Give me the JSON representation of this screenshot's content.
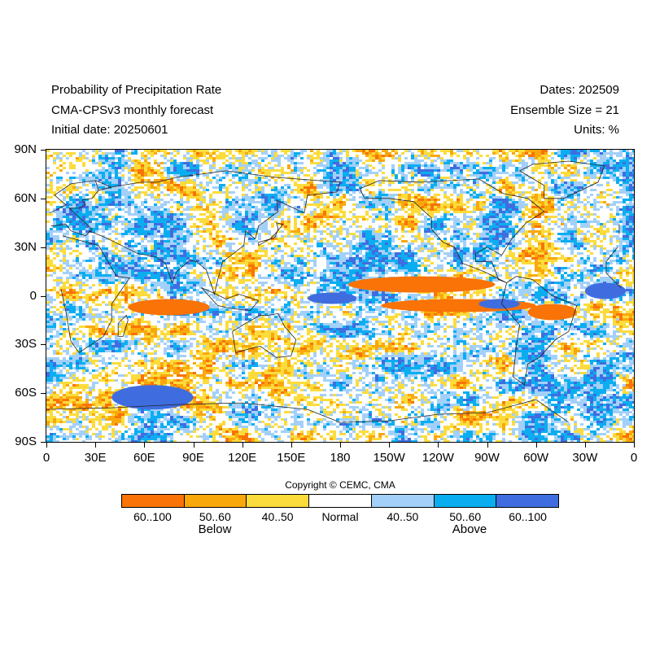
{
  "header": {
    "title": "Probability of Precipitation Rate",
    "model": "CMA-CPSv3 monthly forecast",
    "initial_date": "Initial date: 20250601",
    "dates": "Dates: 202509",
    "ensemble": "Ensemble Size = 21",
    "units": "Units: %"
  },
  "map": {
    "lat_labels": [
      "90N",
      "60N",
      "30N",
      "0",
      "30S",
      "60S",
      "90S"
    ],
    "lon_labels": [
      "0",
      "30E",
      "60E",
      "90E",
      "120E",
      "150E",
      "180",
      "150W",
      "120W",
      "90W",
      "60W",
      "30W",
      "0"
    ],
    "lon_range": [
      0,
      360
    ],
    "lat_range": [
      90,
      -90
    ]
  },
  "legend": {
    "copyright": "Copyright © CEMC, CMA",
    "categories": [
      {
        "label": "60..100",
        "color": "#f97306"
      },
      {
        "label": "50..60",
        "color": "#f9a80c"
      },
      {
        "label": "40..50",
        "color": "#fcdc3c"
      },
      {
        "label": "Normal",
        "color": "#ffffff"
      },
      {
        "label": "40..50",
        "color": "#a3d0f9"
      },
      {
        "label": "50..60",
        "color": "#0aaef0"
      },
      {
        "label": "60..100",
        "color": "#3f6de0"
      }
    ],
    "group_below": "Below",
    "group_above": "Above"
  },
  "regions": [
    {
      "name": "equatorial-pacific-dry-band",
      "lon": [
        185,
        275
      ],
      "lat": [
        12,
        2
      ],
      "category": 0
    },
    {
      "name": "south-pacific-dry-band",
      "lon": [
        205,
        300
      ],
      "lat": [
        -2,
        -10
      ],
      "category": 0
    },
    {
      "name": "indian-ocean-dry-band",
      "lon": [
        50,
        100
      ],
      "lat": [
        -2,
        -12
      ],
      "category": 0
    },
    {
      "name": "amazon-dry",
      "lon": [
        295,
        325
      ],
      "lat": [
        -5,
        -15
      ],
      "category": 0
    },
    {
      "name": "central-pacific-wet",
      "lon": [
        160,
        190
      ],
      "lat": [
        2,
        -5
      ],
      "category": 6
    },
    {
      "name": "east-pacific-wet",
      "lon": [
        265,
        290
      ],
      "lat": [
        -2,
        -8
      ],
      "category": 6
    },
    {
      "name": "atlantic-wet",
      "lon": [
        330,
        355
      ],
      "lat": [
        8,
        -2
      ],
      "category": 6
    },
    {
      "name": "southern-ocean-wet",
      "lon": [
        40,
        90
      ],
      "lat": [
        -55,
        -70
      ],
      "category": 6
    }
  ]
}
